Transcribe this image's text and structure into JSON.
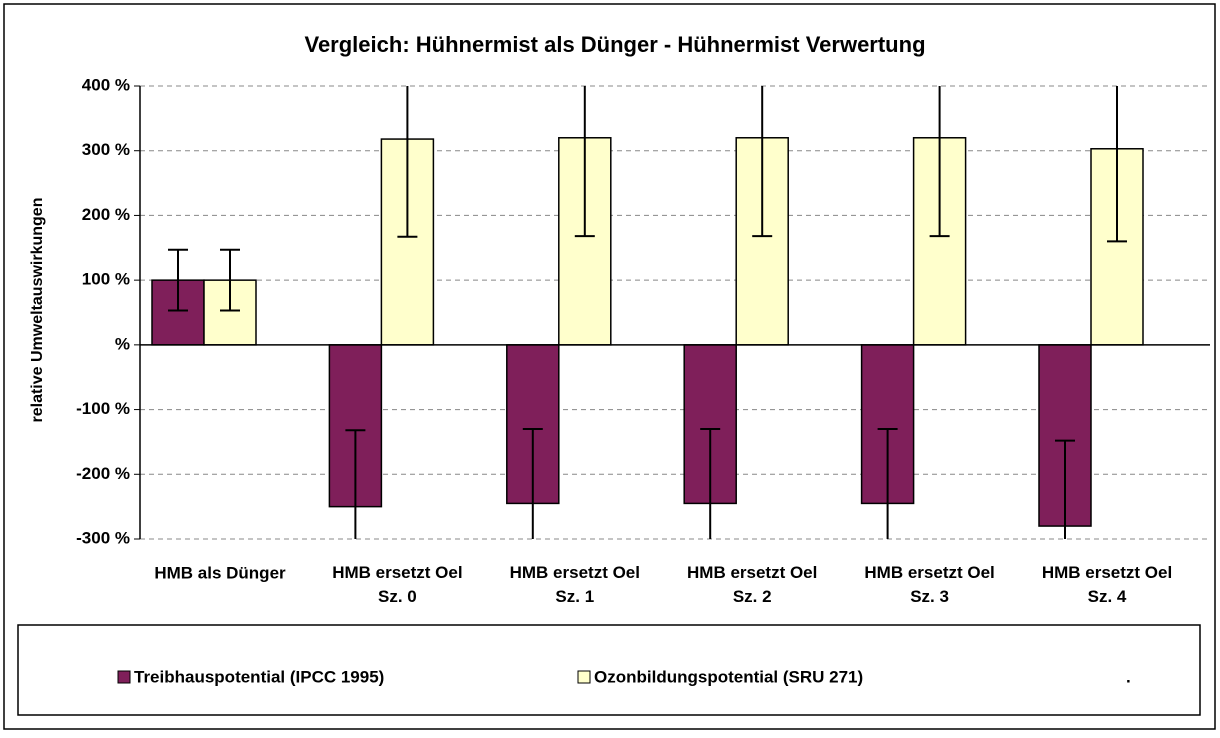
{
  "chart_data": {
    "type": "bar",
    "title": "Vergleich: Hühnermist als Dünger - Hühnermist Verwertung",
    "y_label": "relative Umweltauswirkungen",
    "categories": [
      "HMB als Dünger",
      "HMB ersetzt Oel Sz. 0",
      "HMB ersetzt Oel Sz. 1",
      "HMB ersetzt Oel Sz. 2",
      "HMB ersetzt Oel Sz. 3",
      "HMB ersetzt Oel Sz. 4"
    ],
    "series": [
      {
        "name": "Treibhauspotential (IPCC 1995)",
        "color": "#7f1f5a",
        "values": [
          100,
          -250,
          -245,
          -245,
          -245,
          -280
        ],
        "errors": [
          47,
          118,
          115,
          115,
          115,
          132
        ]
      },
      {
        "name": "Ozonbildungspotential (SRU 271)",
        "color": "#ffffcc",
        "values": [
          100,
          318,
          320,
          320,
          320,
          303
        ],
        "errors": [
          47,
          151,
          152,
          152,
          152,
          143
        ]
      }
    ],
    "legend_note": ".",
    "ylim": [
      -300,
      400
    ],
    "yticks": [
      {
        "value": -300,
        "label": "-300 %"
      },
      {
        "value": -200,
        "label": "-200 %"
      },
      {
        "value": -100,
        "label": "-100 %"
      },
      {
        "value": 0,
        "label": "%"
      },
      {
        "value": 100,
        "label": "100 %"
      },
      {
        "value": 200,
        "label": "200 %"
      },
      {
        "value": 300,
        "label": "300 %"
      },
      {
        "value": 400,
        "label": "400 %"
      }
    ],
    "grid": true
  }
}
